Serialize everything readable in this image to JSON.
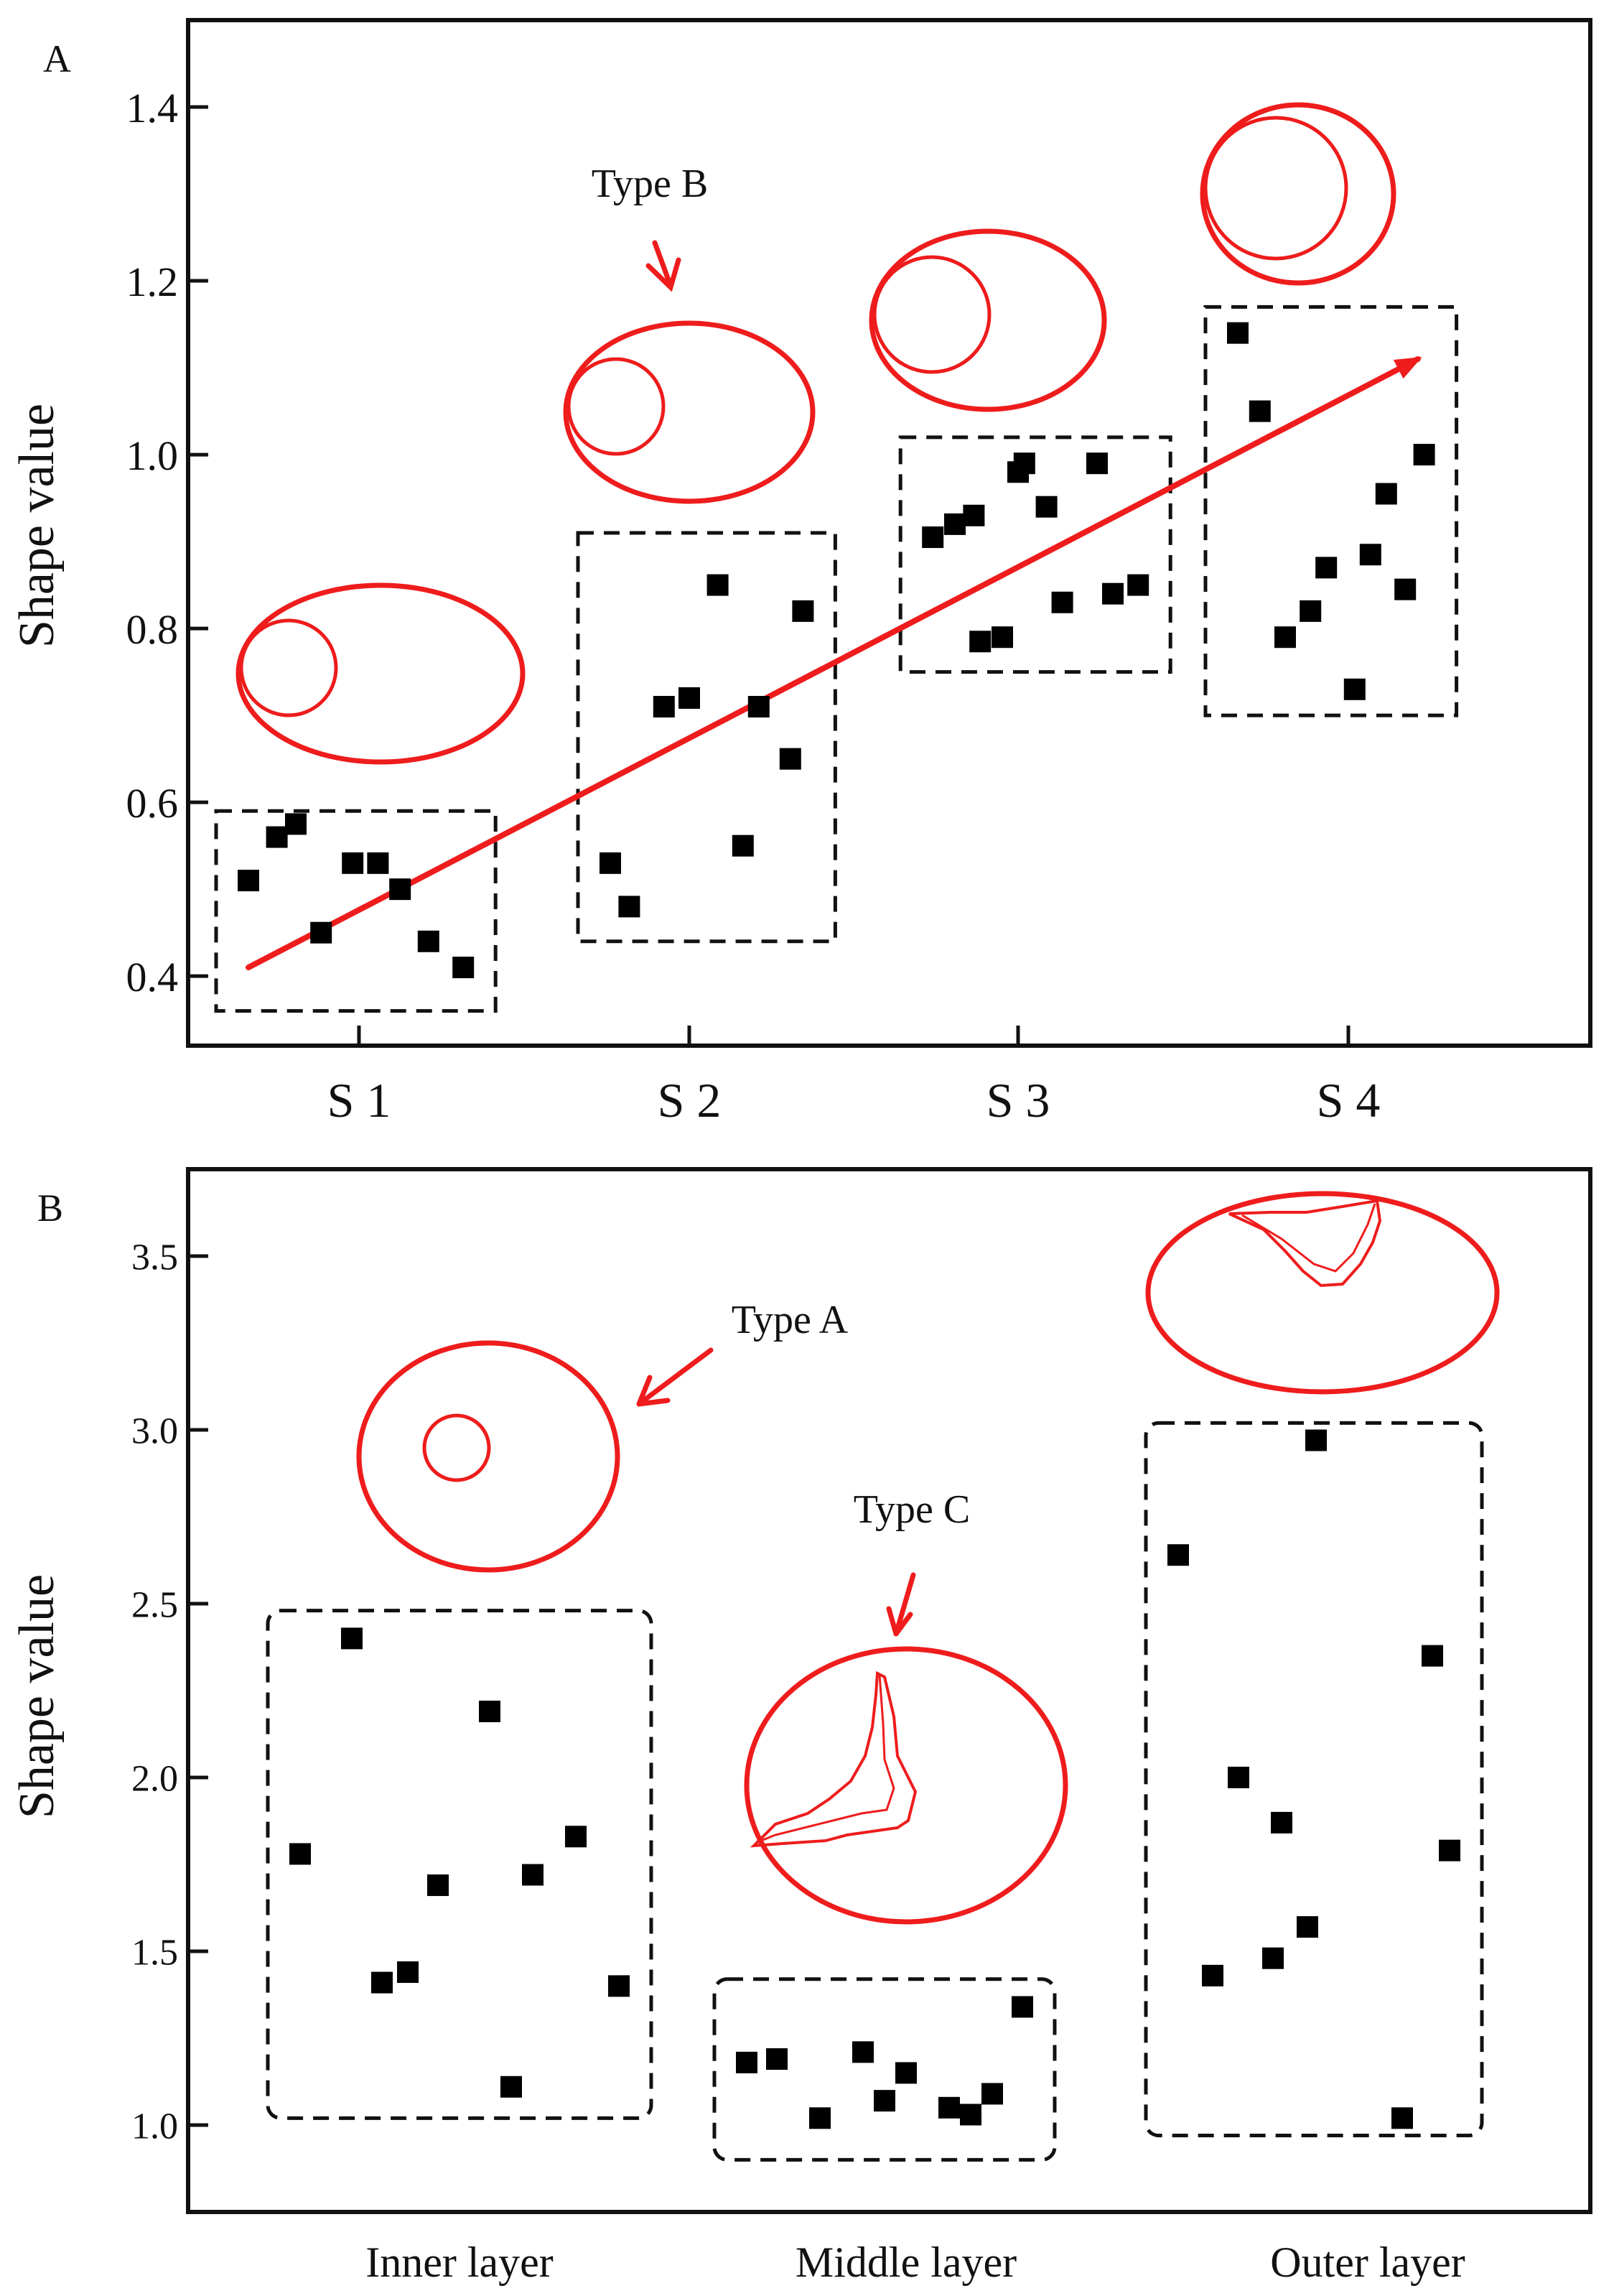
{
  "chart_data": [
    {
      "panel_label": "A",
      "type": "scatter",
      "ylabel": "Shape value",
      "xlabel": "",
      "categories": [
        "S 1",
        "S 2",
        "S 3",
        "S 4"
      ],
      "ylim": [
        0.32,
        1.5
      ],
      "yticks": [
        "0.4",
        "0.6",
        "0.8",
        "1.0",
        "1.2",
        "1.4"
      ],
      "grid": false,
      "point_color": "#000000",
      "shape_color": "#ee1c1c",
      "groups": [
        {
          "category": "S 1",
          "dx": [
            -0.35,
            -0.26,
            -0.2,
            -0.12,
            -0.02,
            0.06,
            0.13,
            0.22,
            0.33
          ],
          "y": [
            0.51,
            0.56,
            0.575,
            0.45,
            0.53,
            0.53,
            0.5,
            0.44,
            0.41
          ],
          "box_ylim": [
            0.36,
            0.59
          ]
        },
        {
          "category": "S 2",
          "dx": [
            -0.25,
            -0.19,
            -0.08,
            0.0,
            0.09,
            0.17,
            0.22,
            0.32,
            0.36
          ],
          "y": [
            0.53,
            0.48,
            0.71,
            0.72,
            0.85,
            0.55,
            0.71,
            0.65,
            0.82
          ],
          "box_ylim": [
            0.44,
            0.91
          ]
        },
        {
          "category": "S 3",
          "dx": [
            -0.27,
            -0.2,
            -0.14,
            -0.12,
            -0.05,
            0.0,
            0.02,
            0.09,
            0.14,
            0.25,
            0.3,
            0.38
          ],
          "y": [
            0.905,
            0.92,
            0.93,
            0.785,
            0.79,
            0.98,
            0.99,
            0.94,
            0.83,
            0.99,
            0.84,
            0.85
          ],
          "box_ylim": [
            0.75,
            1.02
          ]
        },
        {
          "category": "S 4",
          "dx": [
            -0.35,
            -0.28,
            -0.2,
            -0.12,
            -0.07,
            0.02,
            0.07,
            0.12,
            0.18,
            0.24
          ],
          "y": [
            1.14,
            1.05,
            0.79,
            0.82,
            0.87,
            0.73,
            0.885,
            0.955,
            0.845,
            1.0
          ],
          "box_ylim": [
            0.7,
            1.17
          ]
        }
      ],
      "trend_line": {
        "from": {
          "category": "S 1",
          "dx": -0.35,
          "y": 0.41
        },
        "to": {
          "category": "S 4",
          "dx": 0.22,
          "y": 1.11
        }
      },
      "annotations": [
        {
          "text": "Type B"
        }
      ]
    },
    {
      "panel_label": "B",
      "type": "scatter",
      "ylabel": "Shape value",
      "xlabel": "",
      "categories": [
        "Inner layer",
        "Middle layer",
        "Outer layer"
      ],
      "ylim": [
        0.75,
        3.75
      ],
      "yticks": [
        "1.0",
        "1.5",
        "2.0",
        "2.5",
        "3.0",
        "3.5"
      ],
      "grid": false,
      "point_color": "#000000",
      "shape_color": "#ee1c1c",
      "groups": [
        {
          "category": "Inner layer",
          "dx": [
            -0.37,
            -0.25,
            -0.18,
            -0.12,
            -0.05,
            0.07,
            0.12,
            0.17,
            0.27,
            0.37
          ],
          "y": [
            1.78,
            2.4,
            1.41,
            1.44,
            1.69,
            2.19,
            1.11,
            1.72,
            1.83,
            1.4
          ],
          "box_ylim": [
            1.02,
            2.48
          ]
        },
        {
          "category": "Middle layer",
          "dx": [
            -0.37,
            -0.3,
            -0.2,
            -0.1,
            -0.05,
            0.0,
            0.1,
            0.15,
            0.2,
            0.27
          ],
          "y": [
            1.18,
            1.19,
            1.02,
            1.21,
            1.07,
            1.15,
            1.05,
            1.03,
            1.09,
            1.34
          ],
          "box_ylim": [
            0.9,
            1.42
          ]
        },
        {
          "category": "Outer layer",
          "dx": [
            -0.44,
            -0.36,
            -0.3,
            -0.22,
            -0.2,
            -0.14,
            -0.12,
            0.08,
            0.15,
            0.19
          ],
          "y": [
            2.64,
            1.43,
            2.0,
            1.48,
            1.87,
            1.57,
            2.97,
            1.02,
            2.35,
            1.79
          ],
          "box_ylim": [
            0.97,
            3.02
          ]
        }
      ],
      "annotations": [
        {
          "text": "Type A"
        },
        {
          "text": "Type C"
        }
      ]
    }
  ]
}
